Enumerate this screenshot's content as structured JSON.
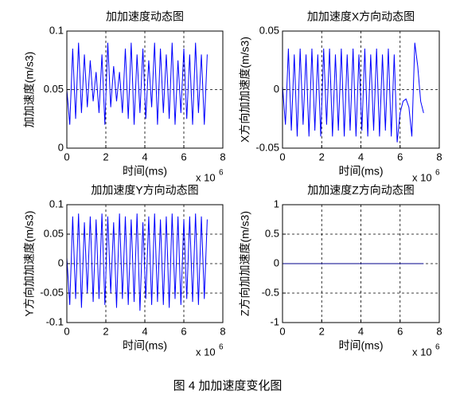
{
  "chart_data": [
    {
      "type": "line",
      "title": "加加速度动态图",
      "xlabel": "时间(ms)",
      "ylabel": "加加速度(m/s3)",
      "x_multiplier": {
        "base": "x 10",
        "exponent": "6"
      },
      "xlim": [
        0,
        8
      ],
      "xticks": [
        0,
        2,
        4,
        6,
        8
      ],
      "ylim": [
        0,
        0.1
      ],
      "yticks": [
        0,
        0.05,
        0.1
      ],
      "grid": true,
      "color": "#0000ff",
      "x": [
        0,
        0.15,
        0.3,
        0.45,
        0.6,
        0.75,
        0.9,
        1.05,
        1.2,
        1.35,
        1.5,
        1.65,
        1.8,
        1.95,
        2.1,
        2.25,
        2.4,
        2.55,
        2.7,
        2.85,
        3,
        3.15,
        3.3,
        3.45,
        3.6,
        3.75,
        3.9,
        4.05,
        4.2,
        4.35,
        4.5,
        4.65,
        4.8,
        4.95,
        5.1,
        5.25,
        5.4,
        5.55,
        5.7,
        5.85,
        6,
        6.15,
        6.3,
        6.45,
        6.6,
        6.75,
        6.9,
        7.05,
        7.2
      ],
      "values": [
        0.05,
        0.02,
        0.085,
        0.025,
        0.09,
        0.03,
        0.08,
        0.035,
        0.075,
        0.04,
        0.065,
        0.03,
        0.08,
        0.02,
        0.09,
        0.035,
        0.07,
        0.04,
        0.065,
        0.03,
        0.085,
        0.025,
        0.09,
        0.02,
        0.08,
        0.03,
        0.085,
        0.025,
        0.075,
        0.035,
        0.09,
        0.02,
        0.085,
        0.03,
        0.08,
        0.025,
        0.09,
        0.02,
        0.075,
        0.03,
        0.085,
        0.025,
        0.08,
        0.02,
        0.09,
        0.03,
        0.08,
        0.02,
        0.08
      ]
    },
    {
      "type": "line",
      "title": "加加速度X方向动态图",
      "xlabel": "时间(ms)",
      "ylabel": "X方向加加速度(m/s3)",
      "x_multiplier": {
        "base": "x 10",
        "exponent": "6"
      },
      "xlim": [
        0,
        8
      ],
      "xticks": [
        0,
        2,
        4,
        6,
        8
      ],
      "ylim": [
        -0.05,
        0.05
      ],
      "yticks": [
        -0.05,
        0,
        0.05
      ],
      "grid": true,
      "color": "#0000ff",
      "x": [
        0,
        0.15,
        0.3,
        0.45,
        0.6,
        0.75,
        0.9,
        1.05,
        1.2,
        1.35,
        1.5,
        1.65,
        1.8,
        1.95,
        2.1,
        2.25,
        2.4,
        2.55,
        2.7,
        2.85,
        3,
        3.15,
        3.3,
        3.45,
        3.6,
        3.75,
        3.9,
        4.05,
        4.2,
        4.35,
        4.5,
        4.65,
        4.8,
        4.95,
        5.1,
        5.25,
        5.4,
        5.55,
        5.7,
        5.85,
        6,
        6.15,
        6.3,
        6.45,
        6.6,
        6.75,
        6.9,
        7.05,
        7.2
      ],
      "values": [
        0.003,
        -0.03,
        0.035,
        -0.035,
        0.03,
        -0.04,
        0.035,
        -0.03,
        0.03,
        -0.04,
        0.035,
        -0.035,
        0.03,
        -0.04,
        0.035,
        -0.03,
        0.035,
        -0.04,
        0.03,
        -0.035,
        0.035,
        -0.04,
        0.03,
        -0.035,
        0.035,
        -0.04,
        0.03,
        -0.035,
        0.035,
        -0.04,
        0.03,
        -0.035,
        0.035,
        -0.04,
        0.03,
        -0.035,
        0.035,
        -0.04,
        0.03,
        -0.045,
        -0.02,
        -0.01,
        -0.008,
        -0.015,
        -0.04,
        0.04,
        0.02,
        -0.01,
        -0.02
      ]
    },
    {
      "type": "line",
      "title": "加加速度Y方向动态图",
      "xlabel": "时间(ms)",
      "ylabel": "Y方向加加速度(m/s3)",
      "x_multiplier": {
        "base": "x 10",
        "exponent": "6"
      },
      "xlim": [
        0,
        8
      ],
      "xticks": [
        0,
        2,
        4,
        6,
        8
      ],
      "ylim": [
        -0.1,
        0.1
      ],
      "yticks": [
        -0.1,
        -0.05,
        0,
        0.05,
        0.1
      ],
      "grid": true,
      "color": "#0000ff",
      "x": [
        0,
        0.15,
        0.3,
        0.45,
        0.6,
        0.75,
        0.9,
        1.05,
        1.2,
        1.35,
        1.5,
        1.65,
        1.8,
        1.95,
        2.1,
        2.25,
        2.4,
        2.55,
        2.7,
        2.85,
        3,
        3.15,
        3.3,
        3.45,
        3.6,
        3.75,
        3.9,
        4.05,
        4.2,
        4.35,
        4.5,
        4.65,
        4.8,
        4.95,
        5.1,
        5.25,
        5.4,
        5.55,
        5.7,
        5.85,
        6,
        6.15,
        6.3,
        6.45,
        6.6,
        6.75,
        6.9,
        7.05,
        7.2
      ],
      "values": [
        0.01,
        -0.07,
        0.08,
        -0.06,
        0.085,
        -0.075,
        0.07,
        -0.05,
        0.08,
        -0.065,
        0.075,
        -0.06,
        0.085,
        -0.07,
        0.08,
        -0.05,
        0.07,
        -0.075,
        0.085,
        -0.06,
        0.08,
        -0.07,
        0.075,
        -0.065,
        0.085,
        -0.08,
        0.07,
        -0.06,
        0.08,
        -0.07,
        0.085,
        -0.065,
        0.075,
        -0.07,
        0.08,
        -0.075,
        0.085,
        -0.06,
        0.08,
        -0.07,
        0.075,
        -0.06,
        0.08,
        -0.065,
        0.085,
        -0.07,
        0.08,
        -0.06,
        0.075
      ]
    },
    {
      "type": "line",
      "title": "加加速度Z方向动态图",
      "xlabel": "时间(ms)",
      "ylabel": "Z方向加加速度(m/s3)",
      "x_multiplier": {
        "base": "x 10",
        "exponent": "6"
      },
      "xlim": [
        0,
        8
      ],
      "xticks": [
        0,
        2,
        4,
        6,
        8
      ],
      "ylim": [
        -1,
        1
      ],
      "yticks": [
        -1,
        -0.5,
        0,
        0.5,
        1
      ],
      "grid": true,
      "color": "#00008b",
      "x": [
        0,
        0.15,
        0.3,
        0.45,
        0.6,
        0.75,
        0.9,
        1.05,
        1.2,
        1.35,
        1.5,
        1.65,
        1.8,
        1.95,
        2.1,
        2.25,
        2.4,
        2.55,
        2.7,
        2.85,
        3,
        3.15,
        3.3,
        3.45,
        3.6,
        3.75,
        3.9,
        4.05,
        4.2,
        4.35,
        4.5,
        4.65,
        4.8,
        4.95,
        5.1,
        5.25,
        5.4,
        5.55,
        5.7,
        5.85,
        6,
        6.15,
        6.3,
        6.45,
        6.6,
        6.75,
        6.9,
        7.05,
        7.2
      ],
      "values": [
        0,
        0,
        0,
        0,
        0,
        0,
        0,
        0,
        0,
        0,
        0,
        0,
        0,
        0,
        0,
        0,
        0,
        0,
        0,
        0,
        0,
        0,
        0,
        0,
        0,
        0,
        0,
        0,
        0,
        0,
        0,
        0,
        0,
        0,
        0,
        0,
        0,
        0,
        0,
        0,
        0,
        0,
        0,
        0,
        0,
        0,
        0,
        0,
        0
      ]
    }
  ],
  "caption": "图 4 加加速度变化图"
}
